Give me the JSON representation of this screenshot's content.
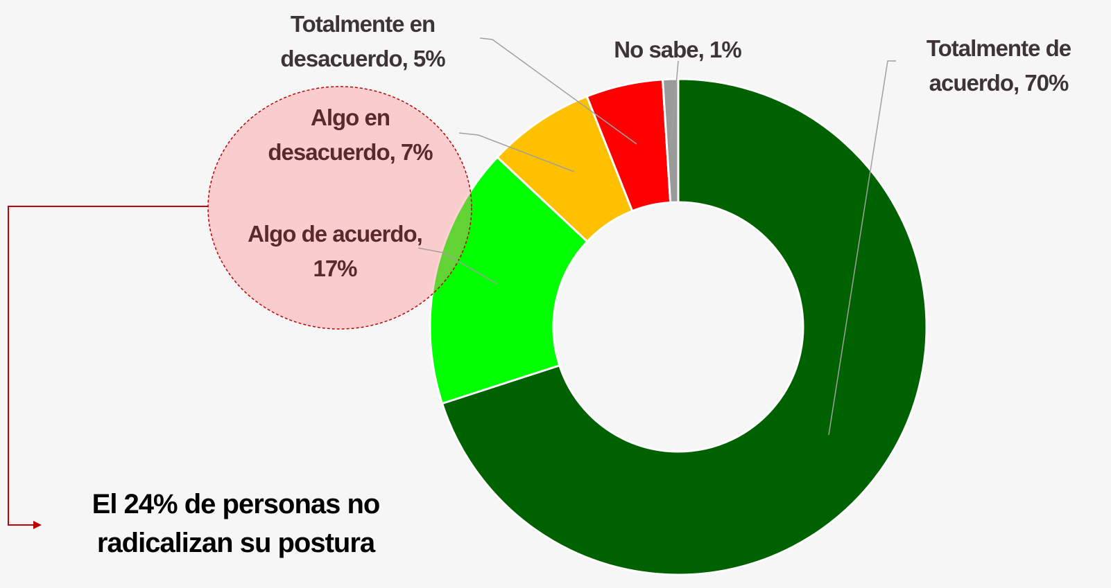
{
  "chart_data": {
    "type": "donut",
    "labels": [
      "Totalmente de acuerdo, 70%",
      "Algo de acuerdo, 17%",
      "Algo en desacuerdo, 7%",
      "Totalmente en desacuerdo, 5%",
      "No sabe, 1%"
    ],
    "values": [
      70,
      17,
      7,
      5,
      1
    ],
    "colors": [
      "#006100",
      "#00ff00",
      "#ffc000",
      "#ff0000",
      "#9a9a9a"
    ],
    "annotation": "El 24% de personas no radicalizan su postura"
  }
}
